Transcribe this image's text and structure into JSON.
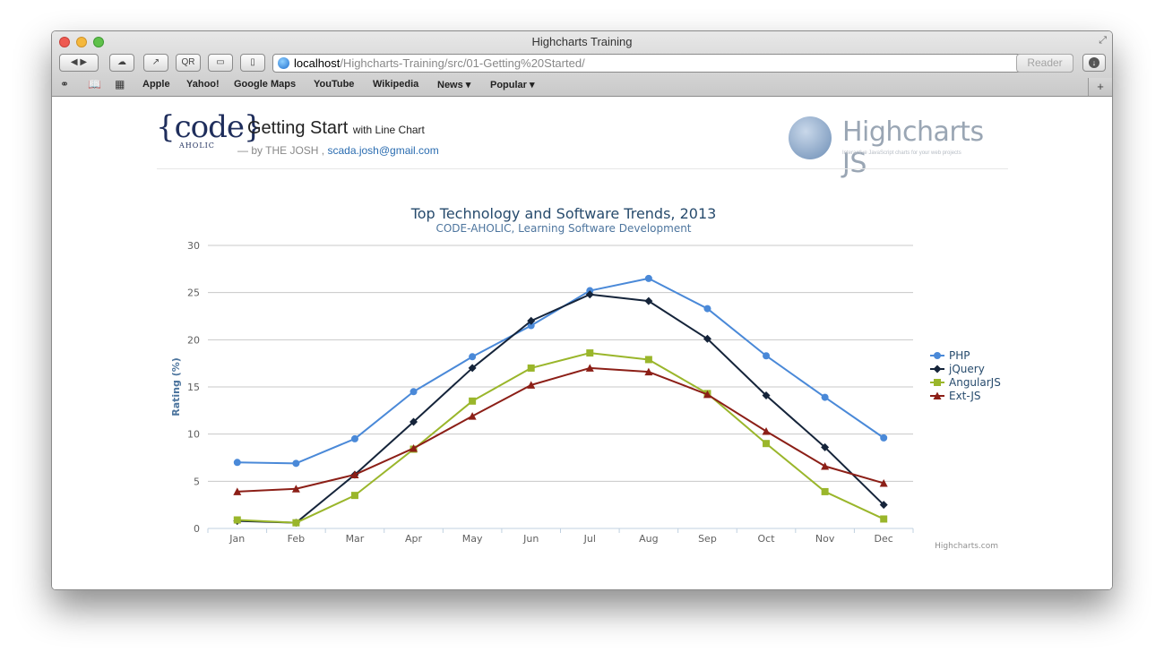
{
  "window": {
    "title": "Highcharts Training",
    "url_host": "localhost",
    "url_path": "/Highcharts-Training/src/01-Getting%20Started/",
    "reader_label": "Reader",
    "buttons": {
      "qr": "QR"
    },
    "bookmarks": [
      "Apple",
      "Yahoo!",
      "Google Maps",
      "YouTube",
      "Wikipedia",
      "News ▾",
      "Popular ▾"
    ]
  },
  "header": {
    "logo_text": "{code}",
    "logo_sub": "AHOLIC",
    "title": "Getting Start",
    "title_suffix": "with Line Chart",
    "by": "— by THE JOSH ,",
    "email": "scada.josh@gmail.com",
    "brand": "Highcharts JS",
    "brand_sub": "Interactive JavaScript charts for your web projects"
  },
  "chart_data": {
    "type": "line",
    "title": "Top Technology and Software Trends, 2013",
    "subtitle": "CODE-AHOLIC, Learning Software Development",
    "ylabel": "Rating (%)",
    "xlabel": "",
    "ylim": [
      0,
      30
    ],
    "yticks": [
      0,
      5,
      10,
      15,
      20,
      25,
      30
    ],
    "grid": true,
    "legend": "right",
    "credits": "Highcharts.com",
    "categories": [
      "Jan",
      "Feb",
      "Mar",
      "Apr",
      "May",
      "Jun",
      "Jul",
      "Aug",
      "Sep",
      "Oct",
      "Nov",
      "Dec"
    ],
    "series": [
      {
        "name": "PHP",
        "color": "#4a89d8",
        "marker": "circle",
        "values": [
          7.0,
          6.9,
          9.5,
          14.5,
          18.2,
          21.5,
          25.2,
          26.5,
          23.3,
          18.3,
          13.9,
          9.6
        ]
      },
      {
        "name": "jQuery",
        "color": "#15243a",
        "marker": "diamond",
        "values": [
          0.8,
          0.6,
          5.7,
          11.3,
          17.0,
          22.0,
          24.8,
          24.1,
          20.1,
          14.1,
          8.6,
          2.5
        ]
      },
      {
        "name": "AngularJS",
        "color": "#9ab62b",
        "marker": "square",
        "values": [
          0.9,
          0.6,
          3.5,
          8.4,
          13.5,
          17.0,
          18.6,
          17.9,
          14.3,
          9.0,
          3.9,
          1.0
        ]
      },
      {
        "name": "Ext-JS",
        "color": "#8c1f17",
        "marker": "triangle",
        "values": [
          3.9,
          4.2,
          5.7,
          8.5,
          11.9,
          15.2,
          17.0,
          16.6,
          14.2,
          10.3,
          6.6,
          4.8
        ]
      }
    ]
  }
}
